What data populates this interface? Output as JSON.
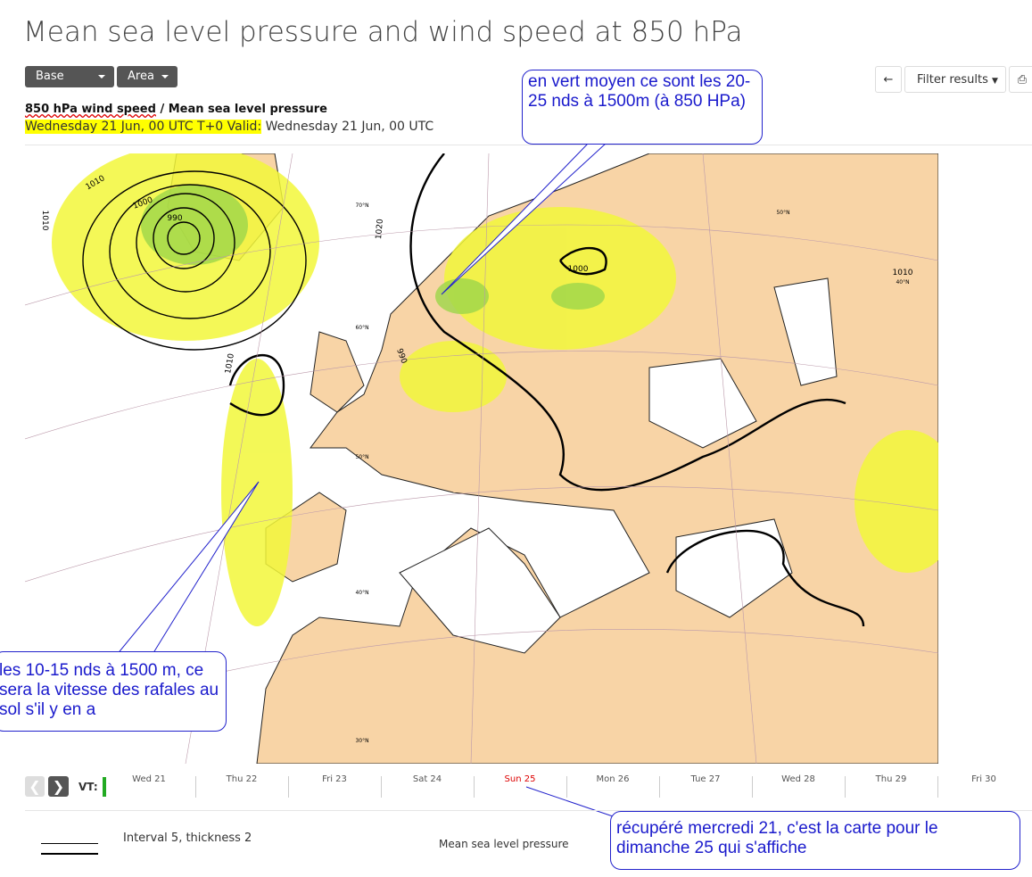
{
  "header": {
    "title": "Mean sea level pressure and wind speed at 850 hPa"
  },
  "toolbar": {
    "left_buttons": [
      "Base time",
      "Area"
    ],
    "filter": "Filter results"
  },
  "layers": {
    "active": "850 hPa wind speed",
    "separator": "/",
    "other": "Mean sea level pressure"
  },
  "validity": {
    "base": "Wednesday 21 Jun, 00 UTC T+0 Valid:",
    "valid": "Wednesday 21 Jun, 00 UTC"
  },
  "map": {
    "contour_labels": [
      "1010",
      "1000",
      "990",
      "1010",
      "1010",
      "1020",
      "990",
      "1000",
      "1010"
    ],
    "latitude_labels": [
      "70°N",
      "60°N",
      "50°N",
      "40°N",
      "30°N",
      "50°N",
      "40°N"
    ]
  },
  "timeline": {
    "label": "VT:",
    "days": [
      "Wed 21",
      "Thu 22",
      "Fri 23",
      "Sat 24",
      "Sun 25",
      "Mon 26",
      "Tue 27",
      "Wed 28",
      "Thu 29",
      "Fri 30"
    ]
  },
  "legend": {
    "line_label": "Interval 5, thickness 2",
    "name": "Mean sea level pressure"
  },
  "annotations": [
    "en vert moyen ce sont les 20-25 nds à 1500m (à 850 HPa)",
    "les 10-15 nds à 1500 m, ce sera la vitesse des rafales au sol s'il y en a",
    "récupéré mercredi 21, c'est la carte pour le dimanche 25 qui s'affiche"
  ]
}
